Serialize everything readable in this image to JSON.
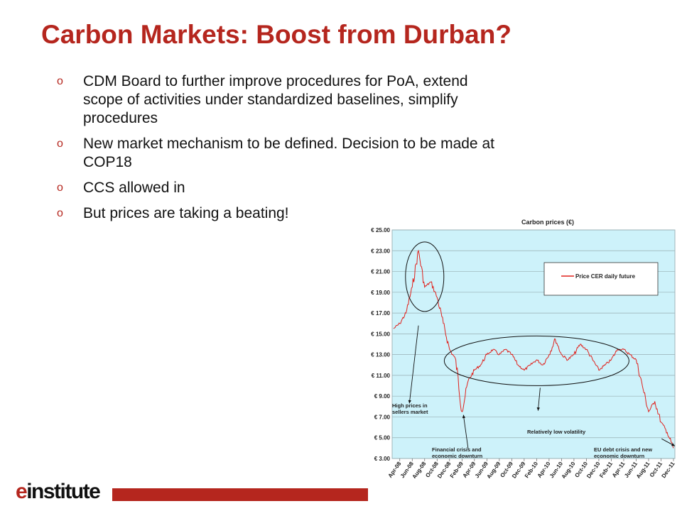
{
  "slide": {
    "title": "Carbon Markets: Boost from Durban?",
    "bullet_marker": "o",
    "bullets": [
      "CDM Board to further improve procedures for PoA, extend scope of activities under standardized baselines, simplify procedures",
      "New market mechanism to be defined.  Decision to be made at COP18",
      "CCS allowed in",
      "But prices are taking a beating!"
    ]
  },
  "footer": {
    "logo_e": "e",
    "logo_rest": "institute",
    "brand_color": "#b5261e"
  },
  "chart_data": {
    "type": "line",
    "title": "Carbon prices (€)",
    "xlabel": "",
    "ylabel": "",
    "ylim": [
      3,
      25
    ],
    "grid": true,
    "legend_position": "top-right",
    "plot_background": "#cdf2fa",
    "y_ticks": [
      "€ 3.00",
      "€ 5.00",
      "€ 7.00",
      "€ 9.00",
      "€ 11.00",
      "€ 13.00",
      "€ 15.00",
      "€ 17.00",
      "€ 19.00",
      "€ 21.00",
      "€ 23.00",
      "€ 25.00"
    ],
    "x_ticks": [
      "Apr-08",
      "Jun-08",
      "Aug-08",
      "Oct-08",
      "Dec-08",
      "Feb-09",
      "Apr-09",
      "Jun-09",
      "Aug-09",
      "Oct-09",
      "Dec-09",
      "Feb-10",
      "Apr-10",
      "Jun-10",
      "Aug-10",
      "Oct-10",
      "Dec-10",
      "Feb-11",
      "Apr-11",
      "Jun-11",
      "Aug-11",
      "Oct-11",
      "Dec-11"
    ],
    "series": [
      {
        "name": "Price CER  daily future",
        "color": "#e0201b",
        "x": [
          "Mar-08",
          "Apr-08",
          "May-08",
          "Jun-08",
          "Jul-08",
          "Aug-08",
          "Sep-08",
          "Oct-08",
          "Nov-08",
          "Dec-08",
          "Jan-09",
          "Feb-09",
          "Mar-09",
          "Apr-09",
          "May-09",
          "Jun-09",
          "Jul-09",
          "Aug-09",
          "Sep-09",
          "Oct-09",
          "Nov-09",
          "Dec-09",
          "Jan-10",
          "Feb-10",
          "Mar-10",
          "Apr-10",
          "May-10",
          "Jun-10",
          "Jul-10",
          "Aug-10",
          "Sep-10",
          "Oct-10",
          "Nov-10",
          "Dec-10",
          "Jan-11",
          "Feb-11",
          "Mar-11",
          "Apr-11",
          "May-11",
          "Jun-11",
          "Jul-11",
          "Aug-11",
          "Sep-11",
          "Oct-11",
          "Nov-11",
          "Dec-11"
        ],
        "values": [
          15.5,
          16.0,
          17.0,
          19.5,
          23.0,
          19.5,
          20.0,
          18.5,
          16.0,
          13.5,
          12.5,
          7.5,
          10.5,
          11.5,
          12.0,
          13.0,
          13.5,
          13.0,
          13.5,
          13.0,
          12.0,
          11.5,
          12.0,
          12.5,
          12.0,
          13.0,
          14.5,
          13.0,
          12.5,
          13.0,
          14.0,
          13.5,
          12.5,
          11.5,
          12.0,
          12.5,
          13.5,
          13.5,
          13.0,
          12.5,
          10.0,
          7.5,
          8.5,
          6.5,
          5.5,
          4.0
        ]
      }
    ],
    "annotations": [
      {
        "text": "High prices in sellers market"
      },
      {
        "text": "Financial crisis and economic downturn"
      },
      {
        "text": "Relatively low volatility"
      },
      {
        "text": "EU debt crisis and new economic downturn"
      }
    ]
  }
}
